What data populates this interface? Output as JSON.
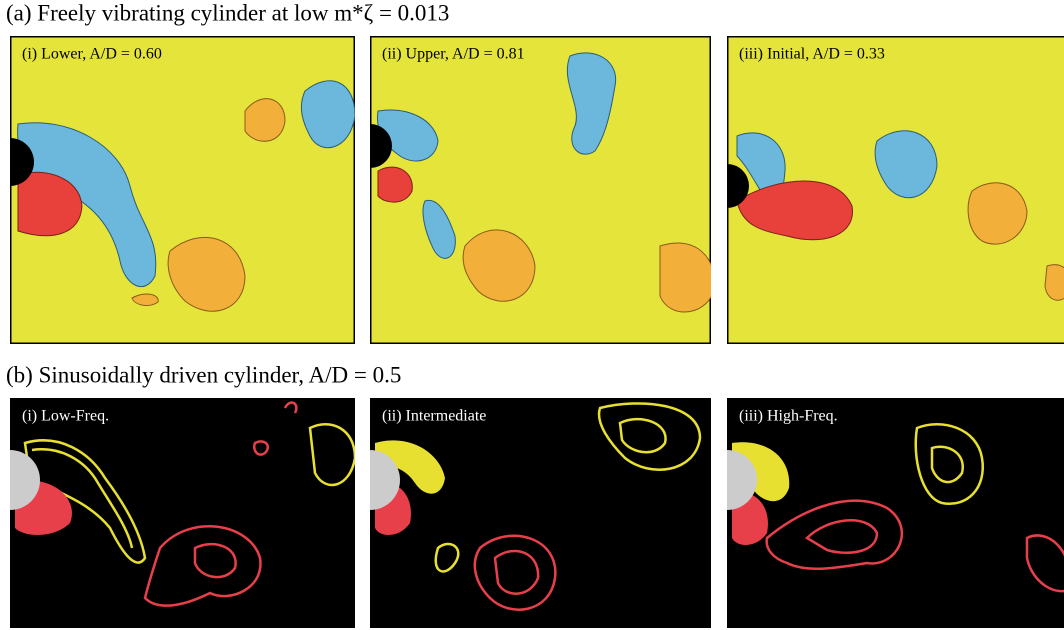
{
  "rows": [
    {
      "title": "(a) Freely vibrating cylinder at low m*ζ = 0.013",
      "panels": [
        {
          "label": "(i) Lower, A/D = 0.60"
        },
        {
          "label": "(ii) Upper, A/D = 0.81"
        },
        {
          "label": "(iii) Initial, A/D = 0.33"
        }
      ]
    },
    {
      "title": "(b) Sinusoidally driven cylinder, A/D = 0.5",
      "panels": [
        {
          "label": "(i) Low-Freq."
        },
        {
          "label": "(ii) Intermediate"
        },
        {
          "label": "(iii) High-Freq."
        }
      ]
    }
  ]
}
